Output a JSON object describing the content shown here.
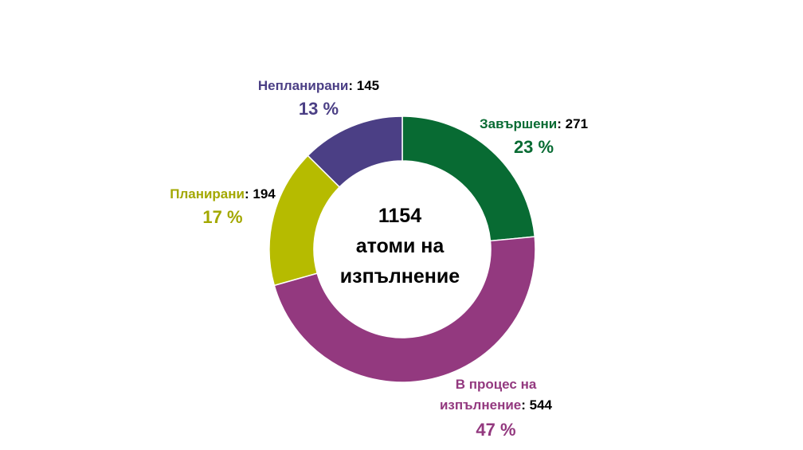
{
  "chart_data": {
    "type": "pie",
    "center": {
      "value": "1154",
      "label": "атоми на изпълнение"
    },
    "slices": [
      {
        "name": "Завършени",
        "value": 271,
        "percent": "23 %",
        "color": "#086b33"
      },
      {
        "name": "В процес на изпълнение",
        "name_line1": "В процес на",
        "name_line2": "изпълнение",
        "value": 544,
        "percent": "47 %",
        "color": "#93397f"
      },
      {
        "name": "Планирани",
        "value": 194,
        "percent": "17 %",
        "color": "#b6bb00"
      },
      {
        "name": "Непланирани",
        "value": 145,
        "percent": "13 %",
        "color": "#4b3f85"
      }
    ]
  }
}
